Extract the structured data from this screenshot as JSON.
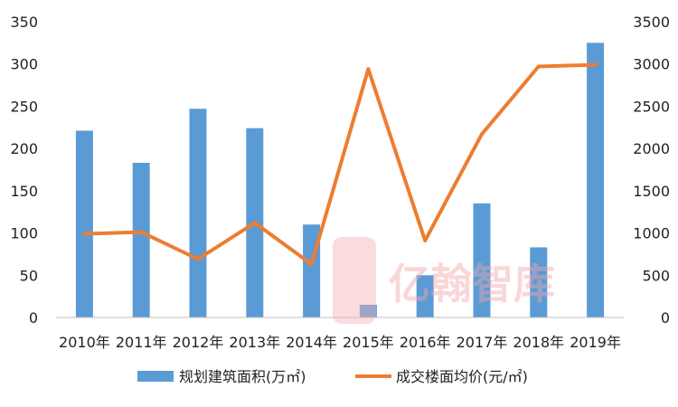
{
  "chart_data": {
    "type": "bar",
    "categories": [
      "2010年",
      "2011年",
      "2012年",
      "2013年",
      "2014年",
      "2015年",
      "2016年",
      "2017年",
      "2018年",
      "2019年"
    ],
    "series": [
      {
        "name": "规划建筑面积(万㎡)",
        "type": "bar",
        "axis": "left",
        "color": "#5b9bd5",
        "values": [
          221,
          183,
          247,
          224,
          110,
          15,
          50,
          135,
          83,
          325
        ]
      },
      {
        "name": "成交楼面均价(元/㎡)",
        "type": "line",
        "axis": "right",
        "color": "#ed7d31",
        "values": [
          990,
          1010,
          690,
          1120,
          630,
          2940,
          910,
          2170,
          2970,
          2990
        ]
      }
    ],
    "y_left": {
      "ylim": [
        0,
        350
      ],
      "ticks": [
        "0",
        "50",
        "100",
        "150",
        "200",
        "250",
        "300",
        "350"
      ]
    },
    "y_right": {
      "ylim": [
        0,
        3500
      ],
      "ticks": [
        "0",
        "500",
        "1000",
        "1500",
        "2000",
        "2500",
        "3000",
        "3500"
      ]
    },
    "grid": false,
    "legend_position": "bottom"
  },
  "watermark": {
    "text": "亿翰智库"
  }
}
